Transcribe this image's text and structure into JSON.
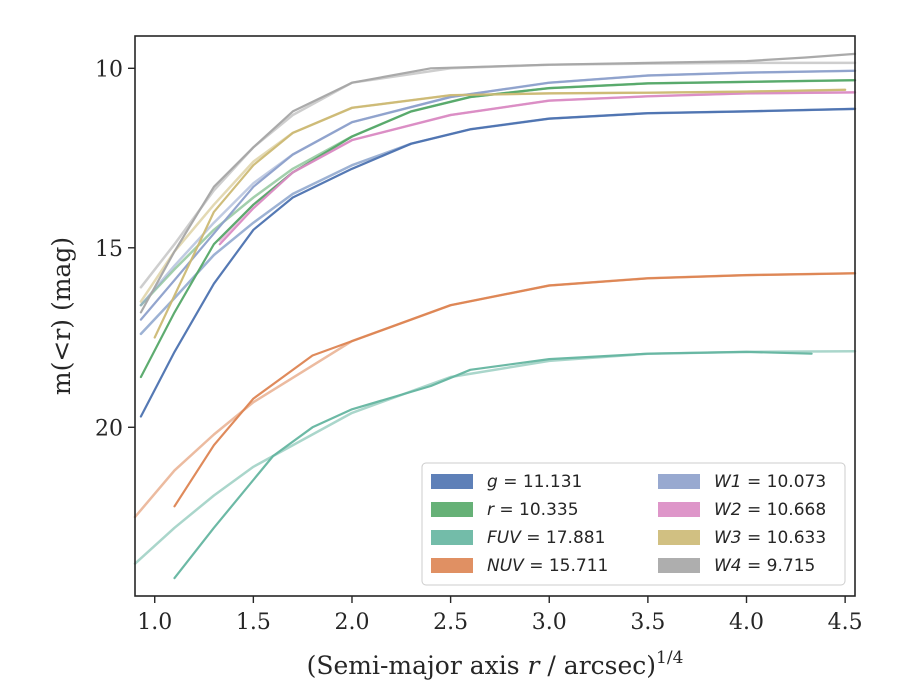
{
  "chart_data": {
    "type": "line",
    "title": "",
    "xlabel": "(Semi-major axis r / arcsec)",
    "xlabel_sup": "1/4",
    "ylabel": "m(<r) (mag)",
    "xlim": [
      0.9,
      4.55
    ],
    "ylim": [
      24.7,
      9.1
    ],
    "y_inverted": true,
    "x_ticks": [
      "1.0",
      "1.5",
      "2.0",
      "2.5",
      "3.0",
      "3.5",
      "4.0",
      "4.5"
    ],
    "y_ticks": [
      "10",
      "15",
      "20"
    ],
    "grid": false,
    "legend_position": "lower-right",
    "legend_columns": 2,
    "series": [
      {
        "name": "g = 11.131",
        "label_var": "g",
        "label_val": "11.131",
        "color": "#4c72b0",
        "x": [
          0.93,
          1.1,
          1.3,
          1.5,
          1.7,
          2.0,
          2.3,
          2.6,
          3.0,
          3.5,
          4.0,
          4.55
        ],
        "y": [
          19.7,
          17.9,
          16.0,
          14.5,
          13.6,
          12.8,
          12.1,
          11.7,
          11.4,
          11.25,
          11.2,
          11.13
        ],
        "fit": {
          "x": [
            0.93,
            1.1,
            1.3,
            1.5,
            1.7,
            2.0,
            2.3,
            2.6,
            3.0,
            3.5,
            4.0,
            4.55
          ],
          "y": [
            17.4,
            16.4,
            15.2,
            14.3,
            13.5,
            12.7,
            12.1,
            11.7,
            11.4,
            11.25,
            11.2,
            11.13
          ]
        }
      },
      {
        "name": "r = 10.335",
        "label_var": "r",
        "label_val": "10.335",
        "color": "#55a868",
        "x": [
          0.93,
          1.1,
          1.3,
          1.5,
          1.7,
          2.0,
          2.3,
          2.6,
          3.0,
          3.5,
          4.0,
          4.55
        ],
        "y": [
          18.6,
          16.8,
          14.9,
          13.8,
          12.9,
          11.9,
          11.2,
          10.8,
          10.55,
          10.42,
          10.38,
          10.33
        ],
        "fit": {
          "x": [
            0.93,
            1.1,
            1.3,
            1.5,
            1.7,
            2.0,
            2.3,
            2.6,
            3.0,
            3.5,
            4.0,
            4.55
          ],
          "y": [
            16.6,
            15.6,
            14.5,
            13.6,
            12.8,
            11.9,
            11.2,
            10.8,
            10.55,
            10.42,
            10.38,
            10.33
          ]
        }
      },
      {
        "name": "FUV = 17.881",
        "label_var": "FUV",
        "label_val": "17.881",
        "color": "#64b5a0",
        "x": [
          1.1,
          1.3,
          1.6,
          1.8,
          2.0,
          2.4,
          2.6,
          3.0,
          3.5,
          4.0,
          4.33
        ],
        "y": [
          24.2,
          22.8,
          20.8,
          20.0,
          19.5,
          18.85,
          18.4,
          18.1,
          17.95,
          17.9,
          17.95
        ],
        "fit": {
          "x": [
            0.9,
            1.1,
            1.3,
            1.5,
            2.0,
            2.5,
            3.0,
            3.5,
            4.0,
            4.55
          ],
          "y": [
            23.8,
            22.8,
            21.9,
            21.1,
            19.6,
            18.6,
            18.15,
            17.95,
            17.9,
            17.88
          ]
        }
      },
      {
        "name": "NUV = 15.711",
        "label_var": "NUV",
        "label_val": "15.711",
        "color": "#dd8452",
        "x": [
          1.1,
          1.3,
          1.5,
          1.8,
          2.0,
          2.5,
          3.0,
          3.5,
          4.0,
          4.55
        ],
        "y": [
          22.2,
          20.5,
          19.2,
          18.0,
          17.6,
          16.6,
          16.05,
          15.85,
          15.76,
          15.71
        ],
        "fit": {
          "x": [
            0.9,
            1.1,
            1.3,
            1.5,
            2.0,
            2.5,
            3.0,
            3.5,
            4.0,
            4.55
          ],
          "y": [
            22.5,
            21.2,
            20.2,
            19.3,
            17.6,
            16.6,
            16.05,
            15.85,
            15.76,
            15.71
          ]
        }
      },
      {
        "name": "W1 = 10.073",
        "label_var": "W1",
        "label_val": "10.073",
        "color": "#8da0cb",
        "x": [
          0.93,
          1.1,
          1.3,
          1.5,
          1.7,
          2.0,
          2.5,
          3.0,
          3.5,
          4.0,
          4.55
        ],
        "y": [
          17.0,
          15.9,
          14.6,
          13.3,
          12.4,
          11.5,
          10.8,
          10.4,
          10.2,
          10.12,
          10.07
        ],
        "fit": {
          "x": [
            0.93,
            1.1,
            1.3,
            1.5,
            1.7,
            2.0,
            2.5,
            3.0,
            3.5,
            4.0,
            4.55
          ],
          "y": [
            16.6,
            15.5,
            14.3,
            13.2,
            12.4,
            11.5,
            10.8,
            10.4,
            10.2,
            10.12,
            10.07
          ]
        }
      },
      {
        "name": "W2 = 10.668",
        "label_var": "W2",
        "label_val": "10.668",
        "color": "#da8bc3",
        "x": [
          1.33,
          1.5,
          1.7,
          2.0,
          2.5,
          3.0,
          3.5,
          4.0,
          4.55
        ],
        "y": [
          14.9,
          13.9,
          12.9,
          12.0,
          11.3,
          10.9,
          10.78,
          10.7,
          10.67
        ],
        "fit": {
          "x": [
            1.33,
            1.5,
            1.7,
            2.0,
            2.5,
            3.0,
            3.5,
            4.0,
            4.55
          ],
          "y": [
            14.8,
            13.8,
            12.9,
            12.0,
            11.3,
            10.9,
            10.78,
            10.7,
            10.67
          ]
        }
      },
      {
        "name": "W3 = 10.633",
        "label_var": "W3",
        "label_val": "10.633",
        "color": "#ccb974",
        "x": [
          1.0,
          1.3,
          1.5,
          1.7,
          2.0,
          2.5,
          3.0,
          3.5,
          4.0,
          4.5
        ],
        "y": [
          17.5,
          14.0,
          12.7,
          11.8,
          11.1,
          10.75,
          10.7,
          10.68,
          10.65,
          10.6
        ],
        "fit": {
          "x": [
            0.93,
            1.1,
            1.3,
            1.5,
            1.7,
            2.0,
            2.5,
            3.0,
            3.5,
            4.0,
            4.5
          ],
          "y": [
            16.5,
            15.1,
            13.8,
            12.6,
            11.8,
            11.1,
            10.75,
            10.7,
            10.68,
            10.65,
            10.6
          ]
        }
      },
      {
        "name": "W4 = 9.715",
        "label_var": "W4",
        "label_val": "9.715",
        "color": "#a5a5a5",
        "x": [
          0.93,
          1.1,
          1.3,
          1.5,
          1.7,
          2.0,
          2.4,
          3.0,
          3.5,
          4.0,
          4.3,
          4.55
        ],
        "y": [
          16.8,
          15.1,
          13.3,
          12.2,
          11.2,
          10.4,
          10.0,
          9.9,
          9.85,
          9.8,
          9.7,
          9.6
        ],
        "fit": {
          "x": [
            0.93,
            1.1,
            1.3,
            1.5,
            1.7,
            2.0,
            2.5,
            3.0,
            3.5,
            4.0,
            4.55
          ],
          "y": [
            16.1,
            14.9,
            13.4,
            12.2,
            11.3,
            10.4,
            10.0,
            9.9,
            9.87,
            9.85,
            9.85
          ]
        }
      }
    ]
  }
}
